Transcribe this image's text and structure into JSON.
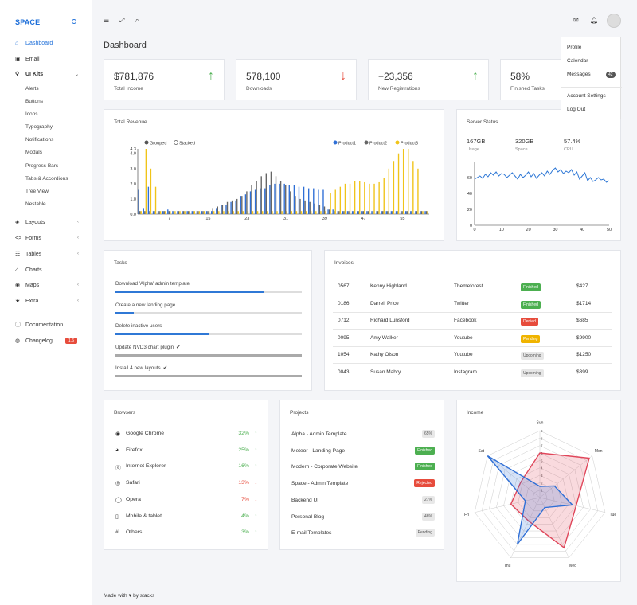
{
  "brand": "SPACE",
  "sidebar": {
    "items": [
      {
        "label": "Dashboard",
        "icon": "home-icon"
      },
      {
        "label": "Email",
        "icon": "inbox-icon"
      },
      {
        "label": "UI Kits",
        "icon": "pin-icon"
      }
    ],
    "sub_items": [
      "Alerts",
      "Buttons",
      "Icons",
      "Typography",
      "Notifications",
      "Modals",
      "Progress Bars",
      "Tabs & Accordions",
      "Tree View",
      "Nestable"
    ],
    "items2": [
      {
        "label": "Layouts",
        "icon": "layers-icon"
      },
      {
        "label": "Forms",
        "icon": "code-icon"
      },
      {
        "label": "Tables",
        "icon": "grid-icon"
      },
      {
        "label": "Charts",
        "icon": "line-chart-icon"
      },
      {
        "label": "Maps",
        "icon": "map-pin-icon"
      },
      {
        "label": "Extra",
        "icon": "star-icon"
      }
    ],
    "documentation": "Documentation",
    "changelog": "Changelog",
    "changelog_badge": "1.6"
  },
  "page_title": "Dashboard",
  "dropdown": {
    "profile": "Profile",
    "calendar": "Calendar",
    "messages": "Messages",
    "messages_badge": "42",
    "account_settings": "Account Settings",
    "logout": "Log Out"
  },
  "stats": [
    {
      "value": "$781,876",
      "label": "Total Income",
      "trend": "up"
    },
    {
      "value": "578,100",
      "label": "Downloads",
      "trend": "down"
    },
    {
      "value": "+23,356",
      "label": "New Registrations",
      "trend": "up"
    },
    {
      "value": "58%",
      "label": "Finished Tasks",
      "trend": "up"
    }
  ],
  "revenue": {
    "title": "Total Revenue",
    "grouped": "Grouped",
    "stacked": "Stacked",
    "legend": [
      "Product1",
      "Product2",
      "Product3"
    ],
    "colors": [
      "#2f6fd6",
      "#666666",
      "#f0c419"
    ]
  },
  "server": {
    "title": "Server Status",
    "usage_val": "167GB",
    "usage_lbl": "Usage",
    "space_val": "320GB",
    "space_lbl": "Space",
    "cpu_val": "57.4%",
    "cpu_lbl": "CPU"
  },
  "tasks": {
    "title": "Tasks",
    "items": [
      {
        "label": "Download 'Alpha' admin template",
        "progress": 0.8,
        "done": false
      },
      {
        "label": "Create a new landing page",
        "progress": 0.1,
        "done": false
      },
      {
        "label": "Delete inactive users",
        "progress": 0.5,
        "done": false
      },
      {
        "label": "Update NVD3 chart plugin",
        "progress": 1.0,
        "done": true
      },
      {
        "label": "Install 4 new layouts",
        "progress": 1.0,
        "done": true
      }
    ]
  },
  "invoices": {
    "title": "Invoices",
    "rows": [
      {
        "id": "0567",
        "name": "Kenny Highland",
        "company": "Themeforest",
        "status": "Finished",
        "color": "#4caf50",
        "amount": "$427"
      },
      {
        "id": "0186",
        "name": "Darrell Price",
        "company": "Twitter",
        "status": "Finished",
        "color": "#4caf50",
        "amount": "$1714"
      },
      {
        "id": "0712",
        "name": "Richard Lunsford",
        "company": "Facebook",
        "status": "Denied",
        "color": "#e74c3c",
        "amount": "$685"
      },
      {
        "id": "0095",
        "name": "Amy Walker",
        "company": "Youtube",
        "status": "Pending",
        "color": "#f0b400",
        "amount": "$9900"
      },
      {
        "id": "1054",
        "name": "Kathy Olson",
        "company": "Youtube",
        "status": "Upcoming",
        "color": "#e6e6e6",
        "amount": "$1250"
      },
      {
        "id": "0043",
        "name": "Susan Mabry",
        "company": "Instagram",
        "status": "Upcoming",
        "color": "#e6e6e6",
        "amount": "$399"
      }
    ]
  },
  "browsers": {
    "title": "Browsers",
    "rows": [
      {
        "name": "Google Chrome",
        "pct": "32%",
        "trend": "up",
        "icon": "chrome-icon"
      },
      {
        "name": "Firefox",
        "pct": "25%",
        "trend": "up",
        "icon": "firefox-icon"
      },
      {
        "name": "Internet Explorer",
        "pct": "16%",
        "trend": "up",
        "icon": "ie-icon"
      },
      {
        "name": "Safari",
        "pct": "13%",
        "trend": "down",
        "icon": "safari-icon"
      },
      {
        "name": "Opera",
        "pct": "7%",
        "trend": "down",
        "icon": "opera-icon"
      },
      {
        "name": "Mobile & tablet",
        "pct": "4%",
        "trend": "up",
        "icon": "mobile-icon"
      },
      {
        "name": "Others",
        "pct": "3%",
        "trend": "up",
        "icon": "hash-icon"
      }
    ]
  },
  "projects": {
    "title": "Projects",
    "rows": [
      {
        "name": "Alpha - Admin Template",
        "badge": "65%",
        "kind": "grey"
      },
      {
        "name": "Meteor - Landing Page",
        "badge": "Finished",
        "kind": "green"
      },
      {
        "name": "Modern - Corporate Website",
        "badge": "Finished",
        "kind": "green"
      },
      {
        "name": "Space - Admin Template",
        "badge": "Rejected",
        "kind": "red"
      },
      {
        "name": "Backend UI",
        "badge": "27%",
        "kind": "grey"
      },
      {
        "name": "Personal Blog",
        "badge": "48%",
        "kind": "grey"
      },
      {
        "name": "E-mail Templates",
        "badge": "Pending",
        "kind": "grey"
      }
    ]
  },
  "income": {
    "title": "Income"
  },
  "footer": {
    "made_with": "Made with",
    "by": "by stacks"
  },
  "chart_data": [
    {
      "type": "bar",
      "title": "Total Revenue",
      "x_ticks": [
        7,
        15,
        23,
        31,
        39,
        47,
        55
      ],
      "y_ticks": [
        0.0,
        1.0,
        2.0,
        3.0,
        4.0,
        4.3
      ],
      "ylim": [
        0,
        4.3
      ],
      "series": [
        {
          "name": "Product1",
          "values": [
            1.6,
            0.4,
            1.8,
            0.2,
            0.2,
            0.2,
            0.3,
            0.2,
            0.2,
            0.2,
            0.2,
            0.2,
            0.2,
            0.2,
            0.2,
            0.2,
            0.4,
            0.6,
            0.6,
            0.8,
            0.9,
            1.2,
            1.3,
            1.5,
            1.6,
            1.7,
            1.7,
            1.9,
            2.0,
            2.0,
            2.0,
            1.9,
            1.9,
            1.8,
            1.8,
            1.7,
            1.7,
            1.6,
            1.6,
            0.3,
            0.3,
            0.2,
            0.2,
            0.2,
            0.2,
            0.2,
            0.2,
            0.2,
            0.2,
            0.2,
            0.2,
            0.2,
            0.2,
            0.2,
            0.2,
            0.2,
            0.2,
            0.2,
            0.2,
            0.2
          ]
        },
        {
          "name": "Product2",
          "values": [
            0.2,
            0.2,
            0.2,
            0.2,
            0.2,
            0.2,
            0.2,
            0.2,
            0.2,
            0.2,
            0.2,
            0.2,
            0.2,
            0.2,
            0.2,
            0.4,
            0.5,
            0.6,
            0.8,
            0.9,
            1.0,
            1.2,
            1.5,
            1.9,
            2.2,
            2.5,
            2.7,
            2.8,
            2.5,
            2.2,
            1.9,
            1.5,
            1.2,
            1.0,
            0.9,
            0.8,
            0.7,
            0.6,
            0.5,
            0.3,
            0.2,
            0.2,
            0.2,
            0.2,
            0.2,
            0.2,
            0.2,
            0.2,
            0.2,
            0.2,
            0.2,
            0.2,
            0.2,
            0.2,
            0.2,
            0.2,
            0.2,
            0.2,
            0.2,
            0.2
          ]
        },
        {
          "name": "Product3",
          "values": [
            0.2,
            4.3,
            3.0,
            1.8,
            0.2,
            0.2,
            0.2,
            0.2,
            0.2,
            0.2,
            0.2,
            0.2,
            0.2,
            0.2,
            0.2,
            0.2,
            0.2,
            0.2,
            0.2,
            0.2,
            0.2,
            0.2,
            0.2,
            0.2,
            0.2,
            0.2,
            0.2,
            0.2,
            0.2,
            0.2,
            0.2,
            0.2,
            0.2,
            0.2,
            0.2,
            0.2,
            0.2,
            0.2,
            0.2,
            1.4,
            1.6,
            1.8,
            2.0,
            2.0,
            2.2,
            2.2,
            2.1,
            2.0,
            2.0,
            2.1,
            2.4,
            3.0,
            3.5,
            4.0,
            4.3,
            4.3,
            3.5,
            3.0,
            0.2,
            0.2
          ]
        }
      ]
    },
    {
      "type": "line",
      "title": "Server Status",
      "x_ticks": [
        0,
        10,
        20,
        30,
        40,
        50
      ],
      "y_ticks": [
        0,
        20,
        40,
        60
      ],
      "xlim": [
        0,
        50
      ],
      "ylim": [
        0,
        80
      ],
      "values": [
        58,
        60,
        62,
        59,
        64,
        61,
        66,
        63,
        67,
        62,
        65,
        64,
        60,
        63,
        66,
        62,
        58,
        64,
        60,
        63,
        67,
        61,
        65,
        59,
        63,
        66,
        62,
        68,
        64,
        69,
        72,
        67,
        70,
        65,
        68,
        66,
        70,
        63,
        67,
        58,
        62,
        66,
        56,
        60,
        55,
        57,
        60,
        57,
        58,
        54,
        56
      ]
    },
    {
      "type": "radar",
      "title": "Income",
      "axes": [
        "Sun",
        "Mon",
        "Tue",
        "Wed",
        "Thu",
        "Fri",
        "Sat"
      ],
      "rings": [
        1,
        2,
        3,
        4,
        5,
        6,
        7,
        8,
        9
      ],
      "series": [
        {
          "color": "#e0465a",
          "values": [
            6,
            8.5,
            5,
            7.5,
            3.5,
            4,
            3.3
          ]
        },
        {
          "color": "#2f6fd6",
          "values": [
            1.5,
            2.5,
            4.5,
            1.5,
            7,
            2,
            9
          ]
        }
      ]
    }
  ]
}
